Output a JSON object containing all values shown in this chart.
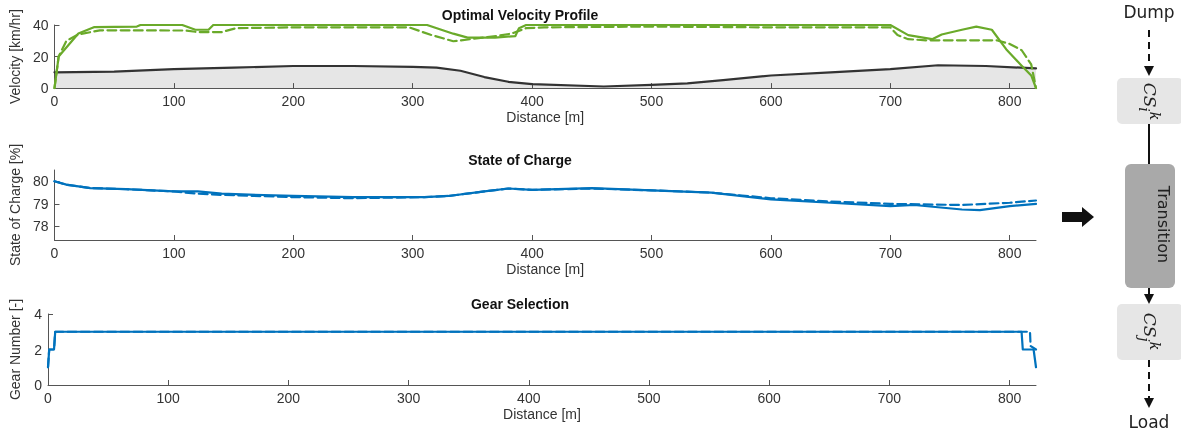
{
  "chart_data": [
    {
      "type": "line",
      "title": "Optimal Velocity Profile",
      "xlabel": "Distance [m]",
      "ylabel": "Velocity [km/hr]",
      "xlim": [
        0,
        822
      ],
      "xticks": [
        0,
        100,
        200,
        300,
        400,
        500,
        600,
        700,
        800
      ],
      "ylim": [
        0,
        40
      ],
      "yticks": [
        0,
        20,
        40
      ],
      "marker": "none",
      "series": [
        {
          "type": "area",
          "color": "#333333",
          "x": [
            0,
            50,
            100,
            150,
            200,
            250,
            300,
            320,
            340,
            360,
            380,
            400,
            460,
            500,
            530,
            560,
            600,
            650,
            700,
            740,
            780,
            822
          ],
          "values": [
            10,
            10.5,
            12,
            13,
            14,
            14,
            13.5,
            13,
            11,
            7,
            4,
            2.5,
            1,
            2,
            3,
            5,
            8,
            10,
            12,
            14.5,
            14,
            12.5
          ]
        },
        {
          "color": "#6aaa2a",
          "line_style": "dashed",
          "x": [
            0,
            3.5,
            10,
            20,
            38,
            60,
            110,
            120,
            140,
            152,
            200,
            297,
            315,
            334,
            370,
            383,
            395,
            410,
            500,
            600,
            700,
            706,
            715,
            730,
            789,
            800,
            810,
            818,
            822
          ],
          "values": [
            0,
            20,
            30,
            34,
            36.6,
            36.6,
            36.5,
            35.5,
            35.5,
            38,
            38.5,
            38.5,
            33.8,
            29.7,
            33,
            34.6,
            38,
            38.5,
            39,
            38.5,
            38.5,
            33.6,
            31,
            30.3,
            30.3,
            28,
            24,
            15,
            0
          ]
        },
        {
          "color": "#6aaa2a",
          "x": [
            0,
            3.5,
            20,
            33,
            69,
            72,
            107,
            118,
            129,
            133,
            312,
            334,
            346,
            369,
            386,
            389,
            395,
            420,
            700,
            715,
            735,
            743,
            760,
            772,
            785,
            797,
            809,
            818,
            822
          ],
          "values": [
            0,
            20,
            34.6,
            38.6,
            39,
            40,
            40,
            37,
            37,
            40,
            40,
            34.5,
            32,
            32,
            33,
            38,
            40,
            40,
            40,
            33.6,
            31,
            34,
            37,
            39,
            37,
            24.7,
            15,
            8,
            0
          ]
        }
      ]
    },
    {
      "type": "line",
      "title": "State of Charge",
      "xlabel": "Distance [m]",
      "ylabel": "State of Charge [%]",
      "xlim": [
        0,
        822
      ],
      "xticks": [
        0,
        100,
        200,
        300,
        400,
        500,
        600,
        700,
        800
      ],
      "ylim": [
        77.4,
        80.5
      ],
      "yticks": [
        78,
        79,
        80
      ],
      "marker": "none",
      "series": [
        {
          "color": "#0072bd",
          "line_style": "dashed",
          "x": [
            0,
            10,
            30,
            60,
            100,
            120,
            140,
            200,
            250,
            310,
            330,
            360,
            380,
            400,
            450,
            500,
            550,
            600,
            650,
            700,
            760,
            800,
            822
          ],
          "values": [
            80,
            79.85,
            79.7,
            79.65,
            79.55,
            79.45,
            79.4,
            79.3,
            79.25,
            79.3,
            79.35,
            79.55,
            79.68,
            79.62,
            79.68,
            79.6,
            79.5,
            79.25,
            79.1,
            79,
            78.95,
            79.05,
            79.15
          ]
        },
        {
          "color": "#0072bd",
          "x": [
            0,
            10,
            30,
            60,
            100,
            120,
            140,
            200,
            250,
            310,
            330,
            360,
            380,
            400,
            450,
            500,
            550,
            600,
            650,
            700,
            720,
            760,
            775,
            800,
            822
          ],
          "values": [
            80,
            79.85,
            79.7,
            79.65,
            79.55,
            79.55,
            79.45,
            79.35,
            79.3,
            79.3,
            79.35,
            79.55,
            79.68,
            79.62,
            79.7,
            79.6,
            79.5,
            79.2,
            79.05,
            78.9,
            78.95,
            78.75,
            78.72,
            78.9,
            79
          ]
        }
      ]
    },
    {
      "type": "line",
      "title": "Gear Selection",
      "xlabel": "Distance [m]",
      "ylabel": "Gear Number [-]",
      "xlim": [
        0,
        822
      ],
      "xticks": [
        0,
        100,
        200,
        300,
        400,
        500,
        600,
        700,
        800
      ],
      "ylim": [
        0,
        4
      ],
      "yticks": [
        0,
        2,
        4
      ],
      "marker": "none",
      "series": [
        {
          "color": "#0072bd",
          "line_style": "dashed",
          "x": [
            0,
            1,
            5,
            6,
            817,
            817.5,
            822
          ],
          "values": [
            1,
            2,
            2,
            3,
            3,
            2.2,
            2
          ]
        },
        {
          "color": "#0072bd",
          "x": [
            0,
            1,
            5,
            6,
            810,
            811,
            820,
            822
          ],
          "values": [
            1,
            2,
            2,
            3,
            3,
            2,
            2,
            1
          ]
        }
      ]
    },
    {
      "type": "other",
      "annotations": [
        "Dump",
        "CS$_{i}$$^{k}$",
        "Transition",
        "CS$_{j}$$^{k}$",
        "Load"
      ]
    }
  ]
}
